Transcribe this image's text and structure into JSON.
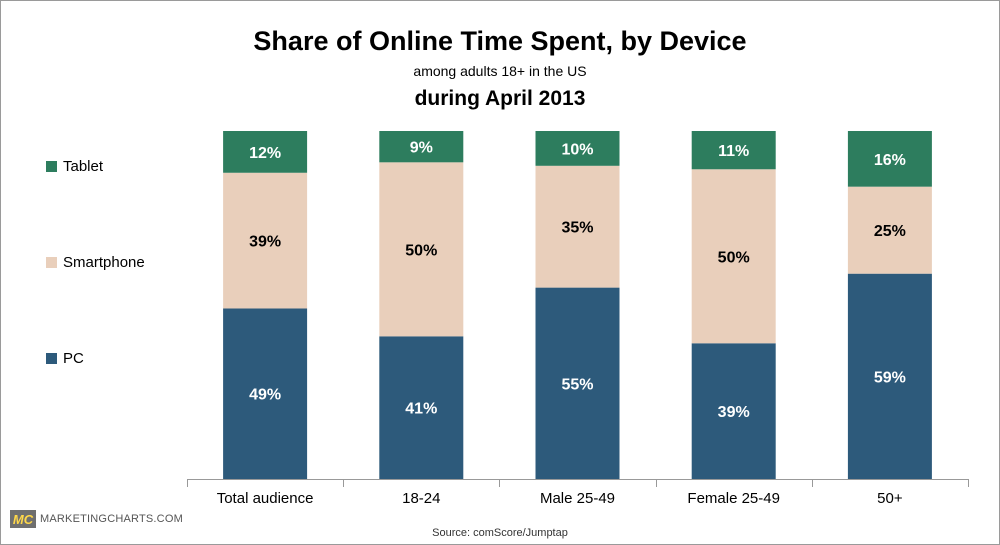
{
  "chart_data": {
    "type": "bar",
    "stacked": true,
    "title": "Share of Online Time Spent, by Device",
    "subtitle": "among adults 18+ in the US",
    "period": "during April 2013",
    "categories": [
      "Total audience",
      "18-24",
      "Male 25-49",
      "Female 25-49",
      "50+"
    ],
    "series": [
      {
        "name": "PC",
        "values": [
          49,
          41,
          55,
          39,
          59
        ],
        "color": "#2d5a7b"
      },
      {
        "name": "Smartphone",
        "values": [
          39,
          50,
          35,
          50,
          25
        ],
        "color": "#e9cfbb"
      },
      {
        "name": "Tablet",
        "values": [
          12,
          9,
          10,
          11,
          16
        ],
        "color": "#2d7d5e"
      }
    ],
    "value_suffix": "%",
    "ylim": [
      0,
      100
    ],
    "grid": false,
    "legend_position": "left"
  },
  "legend": {
    "tablet": "Tablet",
    "smartphone": "Smartphone",
    "pc": "PC"
  },
  "branding": {
    "badge": "MC",
    "site": "MARKETINGCHARTS.COM"
  },
  "source": "Source: comScore/Jumptap"
}
